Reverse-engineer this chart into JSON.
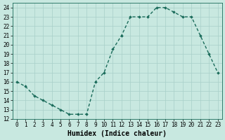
{
  "x": [
    0,
    1,
    2,
    3,
    4,
    5,
    6,
    7,
    8,
    9,
    10,
    11,
    12,
    13,
    14,
    15,
    16,
    17,
    18,
    19,
    20,
    21,
    22,
    23
  ],
  "y": [
    16,
    15.5,
    14.5,
    14,
    13.5,
    13,
    12.5,
    12.5,
    12.5,
    16,
    17,
    19.5,
    21,
    23,
    23,
    23,
    24,
    24,
    23.5,
    23,
    23,
    21,
    19,
    17
  ],
  "xlabel": "Humidex (Indice chaleur)",
  "xlim": [
    -0.5,
    23.5
  ],
  "ylim": [
    12,
    24.5
  ],
  "yticks": [
    12,
    13,
    14,
    15,
    16,
    17,
    18,
    19,
    20,
    21,
    22,
    23,
    24
  ],
  "xticks": [
    0,
    1,
    2,
    3,
    4,
    5,
    6,
    7,
    8,
    9,
    10,
    11,
    12,
    13,
    14,
    15,
    16,
    17,
    18,
    19,
    20,
    21,
    22,
    23
  ],
  "line_color": "#1a6b5a",
  "bg_color": "#c8e8e0",
  "grid_color": "#a8cfc8",
  "marker": "D",
  "marker_size": 1.8,
  "line_width": 1.0,
  "tick_fontsize": 5.5,
  "xlabel_fontsize": 7.0
}
